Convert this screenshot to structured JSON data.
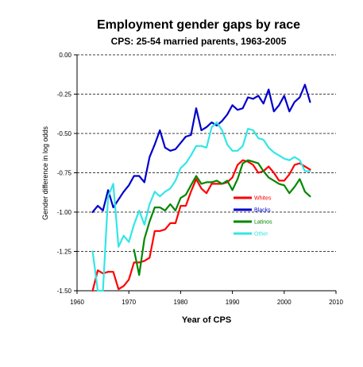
{
  "chart_data": {
    "type": "line",
    "title": "Employment gender gaps by race",
    "subtitle": "CPS: 25-54 married parents, 1963-2005",
    "xlabel": "Year of CPS",
    "ylabel": "Gender difference in log odds",
    "xlim": [
      1960,
      2010
    ],
    "ylim": [
      -1.5,
      0.0
    ],
    "xticks": [
      1960,
      1970,
      1980,
      1990,
      2000,
      2010
    ],
    "yticks": [
      0.0,
      -0.25,
      -0.5,
      -0.75,
      -1.0,
      -1.25,
      -1.5
    ],
    "xtick_labels": [
      "1960",
      "1970",
      "1980",
      "1990",
      "2000",
      "2010"
    ],
    "ytick_labels": [
      "0.00",
      "-0.25",
      "-0.50",
      "-0.75",
      "-1.00",
      "-1.25",
      "-1.50"
    ],
    "grid": "horizontal dashed at y ticks",
    "legend_position": "right, inside plot",
    "series": [
      {
        "name": "Whites",
        "color": "#ff0000",
        "x": [
          1963,
          1964,
          1965,
          1966,
          1967,
          1968,
          1969,
          1970,
          1971,
          1972,
          1973,
          1974,
          1975,
          1976,
          1977,
          1978,
          1979,
          1980,
          1981,
          1982,
          1983,
          1984,
          1985,
          1986,
          1987,
          1988,
          1989,
          1990,
          1991,
          1992,
          1993,
          1994,
          1995,
          1996,
          1997,
          1998,
          1999,
          2000,
          2001,
          2002,
          2003,
          2004,
          2005
        ],
        "y": [
          -1.5,
          -1.37,
          -1.39,
          -1.38,
          -1.38,
          -1.49,
          -1.47,
          -1.43,
          -1.32,
          -1.32,
          -1.31,
          -1.29,
          -1.12,
          -1.12,
          -1.11,
          -1.07,
          -1.07,
          -0.96,
          -0.96,
          -0.87,
          -0.79,
          -0.85,
          -0.88,
          -0.82,
          -0.82,
          -0.82,
          -0.81,
          -0.78,
          -0.7,
          -0.67,
          -0.68,
          -0.7,
          -0.75,
          -0.74,
          -0.71,
          -0.75,
          -0.8,
          -0.8,
          -0.76,
          -0.7,
          -0.69,
          -0.71,
          -0.73
        ]
      },
      {
        "name": "Blacks",
        "color": "#0000cc",
        "x": [
          1963,
          1964,
          1965,
          1966,
          1967,
          1968,
          1969,
          1970,
          1971,
          1972,
          1973,
          1974,
          1975,
          1976,
          1977,
          1978,
          1979,
          1980,
          1981,
          1982,
          1983,
          1984,
          1985,
          1986,
          1987,
          1988,
          1989,
          1990,
          1991,
          1992,
          1993,
          1994,
          1995,
          1996,
          1997,
          1998,
          1999,
          2000,
          2001,
          2002,
          2003,
          2004,
          2005
        ],
        "y": [
          -1.0,
          -0.96,
          -0.99,
          -0.86,
          -0.97,
          -0.92,
          -0.87,
          -0.83,
          -0.77,
          -0.77,
          -0.81,
          -0.65,
          -0.57,
          -0.48,
          -0.59,
          -0.61,
          -0.6,
          -0.56,
          -0.52,
          -0.51,
          -0.34,
          -0.48,
          -0.46,
          -0.43,
          -0.45,
          -0.42,
          -0.38,
          -0.32,
          -0.35,
          -0.34,
          -0.27,
          -0.28,
          -0.26,
          -0.31,
          -0.22,
          -0.36,
          -0.32,
          -0.26,
          -0.36,
          -0.3,
          -0.27,
          -0.19,
          -0.3
        ]
      },
      {
        "name": "Latinos",
        "color": "#008800",
        "x": [
          1971,
          1972,
          1973,
          1974,
          1975,
          1976,
          1977,
          1978,
          1979,
          1980,
          1981,
          1982,
          1983,
          1984,
          1985,
          1986,
          1987,
          1988,
          1989,
          1990,
          1991,
          1992,
          1993,
          1994,
          1995,
          1996,
          1997,
          1998,
          1999,
          2000,
          2001,
          2002,
          2003,
          2004,
          2005
        ],
        "y": [
          -1.24,
          -1.4,
          -1.17,
          -1.06,
          -0.97,
          -0.97,
          -0.99,
          -0.95,
          -0.99,
          -0.91,
          -0.89,
          -0.83,
          -0.77,
          -0.82,
          -0.81,
          -0.81,
          -0.8,
          -0.82,
          -0.8,
          -0.86,
          -0.79,
          -0.69,
          -0.67,
          -0.68,
          -0.69,
          -0.74,
          -0.78,
          -0.8,
          -0.82,
          -0.83,
          -0.88,
          -0.84,
          -0.79,
          -0.87,
          -0.9
        ]
      },
      {
        "name": "Other",
        "color": "#33e6e6",
        "x": [
          1963,
          1964,
          1965,
          1966,
          1967,
          1968,
          1969,
          1970,
          1971,
          1972,
          1973,
          1974,
          1975,
          1976,
          1977,
          1978,
          1979,
          1980,
          1981,
          1982,
          1983,
          1984,
          1985,
          1986,
          1987,
          1988,
          1989,
          1990,
          1991,
          1992,
          1993,
          1994,
          1995,
          1996,
          1997,
          1998,
          1999,
          2000,
          2001,
          2002,
          2003,
          2004,
          2005
        ],
        "y": [
          -1.25,
          -1.5,
          -1.5,
          -0.9,
          -0.82,
          -1.22,
          -1.15,
          -1.19,
          -1.08,
          -0.99,
          -1.08,
          -0.95,
          -0.87,
          -0.9,
          -0.87,
          -0.85,
          -0.8,
          -0.72,
          -0.69,
          -0.64,
          -0.58,
          -0.58,
          -0.59,
          -0.46,
          -0.43,
          -0.48,
          -0.57,
          -0.61,
          -0.61,
          -0.58,
          -0.47,
          -0.48,
          -0.53,
          -0.54,
          -0.59,
          -0.62,
          -0.64,
          -0.66,
          -0.67,
          -0.65,
          -0.67,
          -0.74,
          -0.74
        ]
      }
    ]
  }
}
